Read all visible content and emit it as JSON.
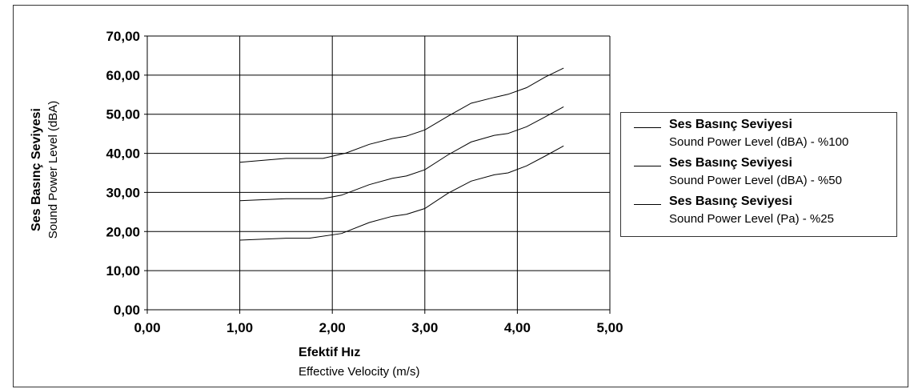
{
  "chart_data": {
    "type": "line",
    "xlabel_bold": "Efektif Hız",
    "xlabel": "Effective Velocity (m/s)",
    "ylabel_bold": "Ses Basınç Seviyesi",
    "ylabel": "Sound Power Level (dBA)",
    "xlim": [
      0,
      5
    ],
    "ylim": [
      0,
      70
    ],
    "x_ticks": [
      "0,00",
      "1,00",
      "2,00",
      "3,00",
      "4,00",
      "5,00"
    ],
    "y_ticks": [
      "0,00",
      "10,00",
      "20,00",
      "30,00",
      "40,00",
      "50,00",
      "60,00",
      "70,00"
    ],
    "grid": true,
    "legend_position": "right",
    "series": [
      {
        "name_bold": "Ses Basınç Seviyesi",
        "name": "Sound Power Level (dBA) - %100",
        "x": [
          1.0,
          1.5,
          1.9,
          2.15,
          2.4,
          2.65,
          2.8,
          3.0,
          3.25,
          3.5,
          3.75,
          3.9,
          4.1,
          4.3,
          4.5
        ],
        "y": [
          37.7,
          38.7,
          38.7,
          40.1,
          42.3,
          43.8,
          44.4,
          46.0,
          49.5,
          52.8,
          54.3,
          55.1,
          56.8,
          59.5,
          61.8
        ]
      },
      {
        "name_bold": "Ses Basınç Seviyesi",
        "name": "Sound Power Level (dBA) - %50",
        "x": [
          1.0,
          1.5,
          1.9,
          2.1,
          2.4,
          2.65,
          2.8,
          3.0,
          3.25,
          3.5,
          3.75,
          3.9,
          4.1,
          4.3,
          4.5
        ],
        "y": [
          27.9,
          28.4,
          28.4,
          29.3,
          32.0,
          33.6,
          34.2,
          35.8,
          39.6,
          42.9,
          44.6,
          45.1,
          46.8,
          49.3,
          51.9
        ]
      },
      {
        "name_bold": "Ses Basınç Seviyesi",
        "name": "Sound Power Level (Pa) - %25",
        "x": [
          1.0,
          1.5,
          1.75,
          2.1,
          2.4,
          2.65,
          2.8,
          3.0,
          3.25,
          3.5,
          3.75,
          3.9,
          4.1,
          4.3,
          4.5
        ],
        "y": [
          17.8,
          18.3,
          18.3,
          19.5,
          22.3,
          23.9,
          24.4,
          25.9,
          29.8,
          32.9,
          34.5,
          35.0,
          36.8,
          39.3,
          41.9
        ]
      }
    ]
  }
}
